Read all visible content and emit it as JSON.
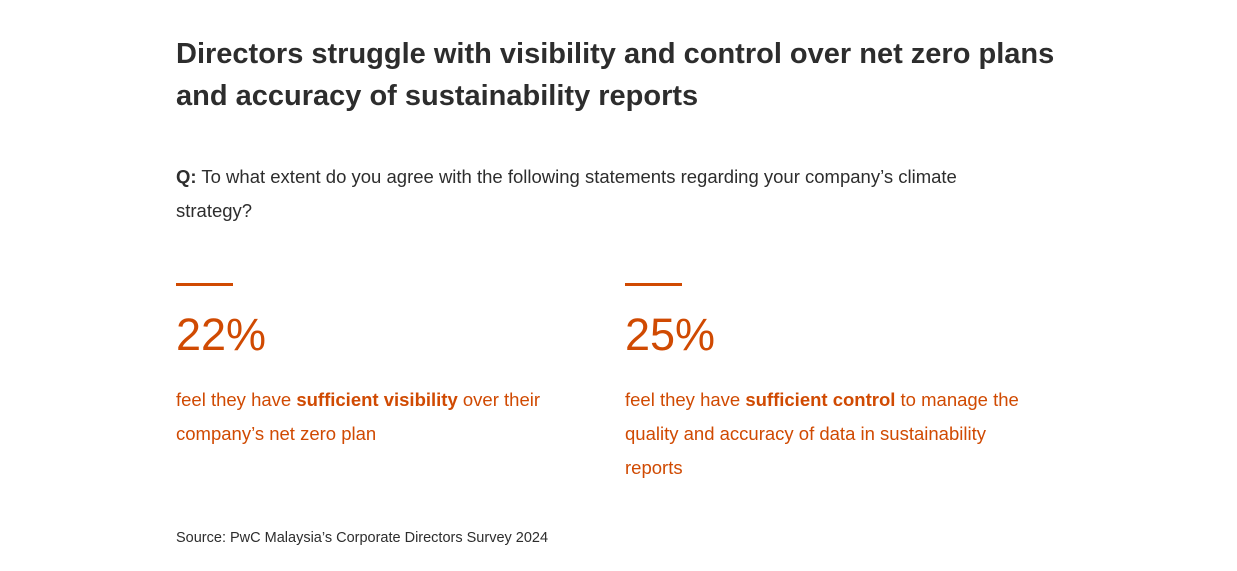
{
  "title": "Directors struggle with visibility and control over net zero plans and accuracy of sustainability reports",
  "question": {
    "prefix": "Q:",
    "text": " To what extent do you agree with the following statements regarding your company’s climate strategy?"
  },
  "accent_color": "#d04a02",
  "stats": [
    {
      "value": "22%",
      "before": "feel they have ",
      "bold": "sufficient visibility",
      "after": " over their company’s net zero plan"
    },
    {
      "value": "25%",
      "before": "feel they have ",
      "bold": "sufficient control",
      "after": " to manage the quality and accuracy of data in sustainability reports"
    }
  ],
  "source": "Source: PwC Malaysia’s Corporate Directors Survey 2024"
}
